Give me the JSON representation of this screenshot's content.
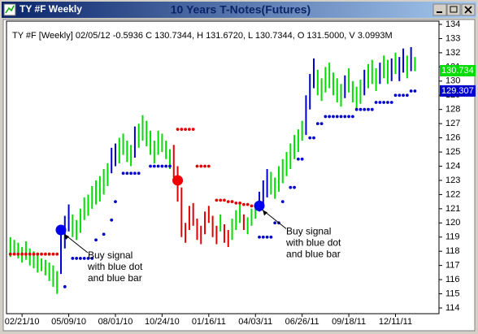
{
  "window": {
    "title": "TY #F Weekly"
  },
  "chart_data": {
    "type": "ohlc",
    "title": "10 Years T-Notes(Futures)",
    "header": "TY #F [Weekly] 02/05/12 -0.5936 C 130.7344, H 131.6720, L 130.7344, O 131.5000, V 3.0993M",
    "xlim": [
      -1,
      106
    ],
    "xticks": [
      {
        "value": 3,
        "label": "02/21/10"
      },
      {
        "value": 15,
        "label": "05/09/10"
      },
      {
        "value": 27,
        "label": "08/01/10"
      },
      {
        "value": 39,
        "label": "10/24/10"
      },
      {
        "value": 51,
        "label": "01/16/11"
      },
      {
        "value": 63,
        "label": "04/03/11"
      },
      {
        "value": 75,
        "label": "06/26/11"
      },
      {
        "value": 87,
        "label": "09/18/11"
      },
      {
        "value": 99,
        "label": "12/11/11"
      }
    ],
    "ylim": [
      114,
      134
    ],
    "yticks": [
      114,
      115,
      116,
      117,
      118,
      119,
      120,
      121,
      122,
      123,
      124,
      125,
      126,
      127,
      128,
      129,
      130,
      131,
      132,
      133,
      134
    ],
    "high": [
      119.0,
      118.8,
      118.6,
      118.3,
      118.7,
      118.2,
      118.0,
      117.8,
      117.5,
      117.4,
      117.2,
      117.0,
      116.6,
      119.6,
      120.5,
      121.3,
      120.6,
      120.2,
      121.0,
      121.8,
      122.0,
      122.6,
      123.0,
      123.3,
      123.8,
      124.2,
      125.3,
      125.6,
      126.0,
      126.3,
      125.8,
      125.5,
      126.8,
      127.0,
      127.6,
      127.2,
      126.5,
      125.8,
      126.5,
      126.3,
      125.8,
      125.2,
      125.5,
      124.0,
      122.5,
      120.0,
      121.2,
      121.4,
      120.3,
      119.8,
      120.8,
      121.2,
      120.5,
      119.8,
      120.6,
      119.9,
      119.5,
      120.3,
      120.9,
      121.3,
      120.6,
      120.4,
      121.0,
      121.4,
      122.2,
      123.0,
      123.8,
      123.6,
      123.2,
      124.0,
      124.5,
      125.0,
      125.6,
      126.2,
      126.6,
      127.2,
      129.0,
      130.5,
      131.6,
      130.8,
      130.2,
      131.0,
      131.3,
      130.6,
      130.2,
      129.8,
      130.4,
      130.9,
      130.0,
      129.6,
      130.1,
      130.8,
      131.2,
      131.5,
      130.9,
      131.3,
      131.8,
      131.5,
      131.6,
      132.0,
      131.7,
      132.3,
      131.8,
      132.4,
      131.7
    ],
    "low": [
      117.6,
      117.8,
      117.5,
      117.2,
      117.4,
      117.0,
      116.8,
      116.5,
      116.6,
      116.3,
      115.9,
      115.5,
      115.0,
      116.4,
      118.2,
      119.4,
      119.0,
      118.8,
      119.3,
      120.2,
      120.5,
      121.0,
      121.3,
      121.5,
      122.0,
      122.6,
      123.5,
      124.0,
      124.2,
      124.8,
      124.3,
      124.0,
      124.6,
      125.3,
      125.8,
      125.4,
      124.8,
      124.2,
      124.8,
      125.0,
      124.5,
      123.8,
      123.2,
      121.5,
      119.0,
      118.6,
      119.5,
      119.8,
      118.8,
      118.5,
      119.2,
      120.0,
      119.0,
      118.5,
      119.4,
      118.6,
      118.3,
      118.8,
      119.5,
      120.0,
      119.5,
      119.2,
      119.8,
      120.3,
      120.8,
      121.3,
      121.8,
      122.0,
      121.7,
      122.2,
      122.8,
      123.3,
      123.8,
      124.5,
      125.0,
      125.8,
      126.2,
      128.0,
      129.5,
      129.0,
      128.6,
      129.2,
      129.5,
      129.0,
      128.5,
      128.2,
      128.8,
      129.2,
      128.5,
      128.0,
      128.4,
      129.0,
      129.5,
      129.8,
      129.3,
      129.8,
      130.2,
      129.8,
      130.0,
      130.5,
      130.0,
      130.6,
      130.2,
      130.7,
      130.7
    ],
    "colors": [
      "#00dd00",
      "#00dd00",
      "#00dd00",
      "#00dd00",
      "#00dd00",
      "#00dd00",
      "#00dd00",
      "#00dd00",
      "#00dd00",
      "#00dd00",
      "#00dd00",
      "#00dd00",
      "#00dd00",
      "#0000cc",
      "#0000cc",
      "#0000cc",
      "#00dd00",
      "#00dd00",
      "#00dd00",
      "#00dd00",
      "#00dd00",
      "#00dd00",
      "#00dd00",
      "#00dd00",
      "#00dd00",
      "#00dd00",
      "#0000cc",
      "#0000cc",
      "#00dd00",
      "#00dd00",
      "#00dd00",
      "#00dd00",
      "#0000cc",
      "#00dd00",
      "#00dd00",
      "#00dd00",
      "#00dd00",
      "#00dd00",
      "#00dd00",
      "#00dd00",
      "#00dd00",
      "#00dd00",
      "#e00000",
      "#e00000",
      "#e00000",
      "#e00000",
      "#e00000",
      "#e00000",
      "#e00000",
      "#e00000",
      "#e00000",
      "#e00000",
      "#e00000",
      "#e00000",
      "#00dd00",
      "#e00000",
      "#e00000",
      "#00dd00",
      "#00dd00",
      "#00dd00",
      "#e00000",
      "#00dd00",
      "#00dd00",
      "#00dd00",
      "#0000cc",
      "#0000cc",
      "#0000cc",
      "#00dd00",
      "#00dd00",
      "#00dd00",
      "#00dd00",
      "#00dd00",
      "#00dd00",
      "#00dd00",
      "#00dd00",
      "#00dd00",
      "#0000cc",
      "#0000cc",
      "#0000cc",
      "#00dd00",
      "#00dd00",
      "#00dd00",
      "#00dd00",
      "#00dd00",
      "#00dd00",
      "#00dd00",
      "#0000cc",
      "#00dd00",
      "#00dd00",
      "#00dd00",
      "#00dd00",
      "#0000cc",
      "#00dd00",
      "#00dd00",
      "#00dd00",
      "#0000cc",
      "#00dd00",
      "#00dd00",
      "#0000cc",
      "#00dd00",
      "#0000cc",
      "#0000cc",
      "#00dd00",
      "#0000cc",
      "#00dd00"
    ],
    "dot_series": [
      {
        "color": "#e00000",
        "x": [
          0,
          1,
          2,
          3,
          4,
          5,
          6,
          7,
          8,
          9,
          10,
          11,
          12
        ],
        "values": [
          117.8,
          117.8,
          117.8,
          117.8,
          117.8,
          117.8,
          117.8,
          117.8,
          117.8,
          117.8,
          117.8,
          117.8,
          117.8
        ]
      },
      {
        "color": "#0000cc",
        "x": [
          14,
          16,
          17,
          18,
          19,
          20,
          21,
          22,
          24,
          26,
          27,
          29,
          30,
          31,
          32,
          33,
          36,
          37,
          38,
          39,
          40,
          41
        ],
        "values": [
          115.5,
          117.5,
          117.5,
          117.5,
          117.5,
          117.5,
          117.5,
          118.8,
          119.2,
          120.2,
          121.5,
          123.5,
          123.5,
          123.5,
          123.5,
          123.5,
          124.0,
          124.0,
          124.0,
          124.0,
          124.0,
          124.0
        ]
      },
      {
        "color": "#e00000",
        "x": [
          43,
          44,
          45,
          46,
          47,
          48,
          49,
          50,
          51,
          53,
          54,
          55,
          56,
          57,
          58,
          59,
          60,
          61,
          62,
          63
        ],
        "values": [
          126.6,
          126.6,
          126.6,
          126.6,
          126.6,
          124.0,
          124.0,
          124.0,
          124.0,
          121.6,
          121.6,
          121.6,
          121.5,
          121.5,
          121.4,
          121.4,
          121.3,
          121.3,
          121.2,
          121.2
        ]
      },
      {
        "color": "#0000cc",
        "x": [
          64,
          65,
          66,
          67,
          68,
          69,
          70,
          72,
          73,
          74,
          75,
          77,
          78,
          79,
          80,
          81,
          82,
          83,
          84,
          85,
          86,
          87,
          88,
          89,
          90,
          91,
          92,
          93,
          94,
          95,
          96,
          97,
          98,
          99,
          100,
          101,
          102,
          103,
          104
        ],
        "values": [
          119.0,
          119.0,
          119.0,
          119.0,
          120.0,
          120.0,
          121.5,
          122.5,
          122.5,
          124.5,
          124.5,
          126.0,
          126.0,
          127.0,
          127.0,
          127.5,
          127.5,
          127.5,
          127.5,
          127.5,
          127.5,
          127.5,
          127.5,
          128.0,
          128.0,
          128.0,
          128.0,
          128.0,
          128.5,
          128.5,
          128.5,
          128.5,
          128.5,
          129.0,
          129.0,
          129.0,
          129.0,
          129.3,
          129.3
        ]
      }
    ],
    "markers": [
      {
        "x": 13,
        "value": 119.5,
        "color": "#0000ee"
      },
      {
        "x": 43,
        "value": 123.0,
        "color": "#ee0000"
      },
      {
        "x": 64,
        "value": 121.2,
        "color": "#0000ee"
      }
    ],
    "annotations": [
      {
        "x": 13,
        "value": 119.5,
        "lines": [
          "Buy signal",
          "with blue dot",
          "and blue bar"
        ]
      },
      {
        "x": 64,
        "value": 121.2,
        "lines": [
          "Buy signal",
          "with blue dot",
          "and blue bar"
        ]
      }
    ],
    "price_labels": [
      {
        "value": 130.7344,
        "label": "130.734",
        "color": "#00dd00"
      },
      {
        "value": 129.307,
        "label": "129.307",
        "color": "#0000cc"
      }
    ]
  }
}
